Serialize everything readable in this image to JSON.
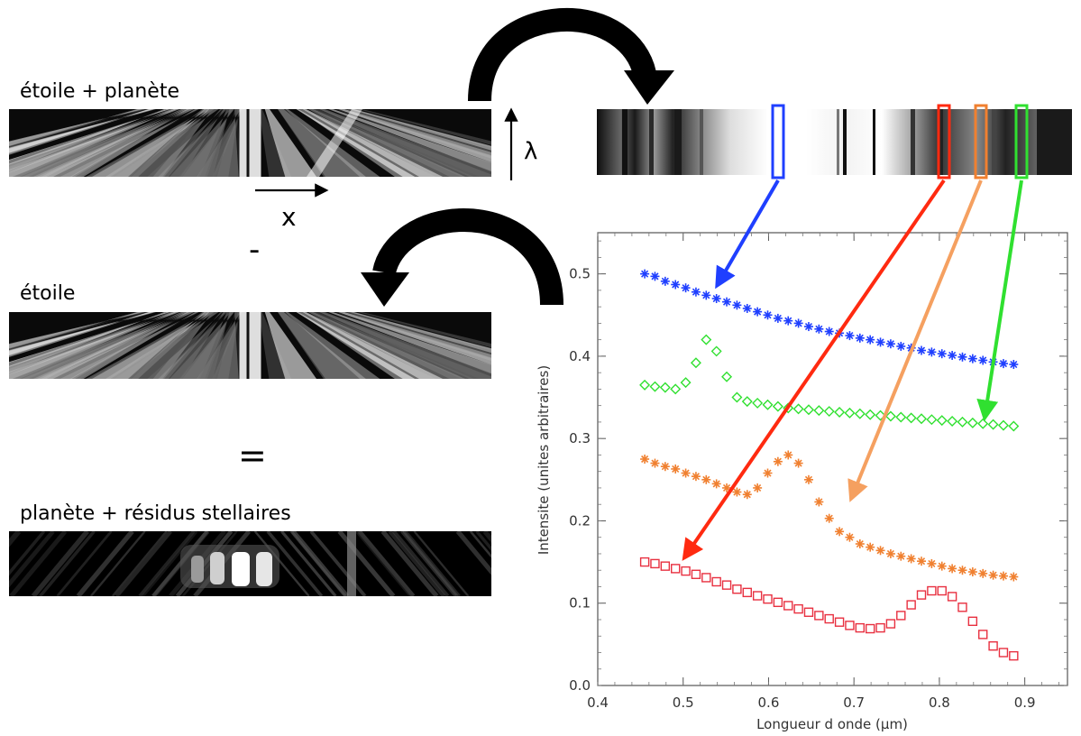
{
  "labels": {
    "star_planet": "étoile + planète",
    "star": "étoile",
    "residual": "planète + résidus stellaires",
    "minus": "-",
    "equals": "=",
    "x_axis_symbol": "x",
    "lambda_symbol": "λ"
  },
  "colors": {
    "blue": "#1f3fff",
    "red": "#ff2a10",
    "orange": "#f5a060",
    "green": "#30e030"
  },
  "chart_data": {
    "type": "scatter",
    "xlabel": "Longueur d onde (μm)",
    "ylabel": "Intensite (unites arbitraires)",
    "xlim": [
      0.4,
      0.95
    ],
    "ylim": [
      0.0,
      0.55
    ],
    "x_ticks": [
      "0.4",
      "0.5",
      "0.6",
      "0.7",
      "0.8",
      "0.9"
    ],
    "y_ticks": [
      "0.0",
      "0.1",
      "0.2",
      "0.3",
      "0.4",
      "0.5"
    ],
    "x": [
      0.455,
      0.467,
      0.479,
      0.491,
      0.503,
      0.515,
      0.527,
      0.539,
      0.551,
      0.563,
      0.575,
      0.587,
      0.599,
      0.611,
      0.623,
      0.635,
      0.647,
      0.659,
      0.671,
      0.683,
      0.695,
      0.707,
      0.719,
      0.731,
      0.743,
      0.755,
      0.767,
      0.779,
      0.791,
      0.803,
      0.815,
      0.827,
      0.839,
      0.851,
      0.863,
      0.875,
      0.887
    ],
    "series": [
      {
        "marker": "asterisk",
        "color": "#1f3fff",
        "values": [
          0.5,
          0.497,
          0.491,
          0.487,
          0.483,
          0.478,
          0.474,
          0.47,
          0.466,
          0.462,
          0.458,
          0.454,
          0.45,
          0.446,
          0.443,
          0.44,
          0.436,
          0.433,
          0.43,
          0.428,
          0.425,
          0.422,
          0.42,
          0.417,
          0.415,
          0.412,
          0.41,
          0.407,
          0.405,
          0.403,
          0.401,
          0.399,
          0.397,
          0.395,
          0.393,
          0.391,
          0.39
        ]
      },
      {
        "marker": "diamond",
        "color": "#30e030",
        "values": [
          0.365,
          0.363,
          0.362,
          0.36,
          0.368,
          0.392,
          0.42,
          0.406,
          0.375,
          0.35,
          0.345,
          0.343,
          0.341,
          0.339,
          0.337,
          0.336,
          0.335,
          0.334,
          0.333,
          0.332,
          0.331,
          0.33,
          0.329,
          0.328,
          0.327,
          0.326,
          0.325,
          0.324,
          0.323,
          0.322,
          0.321,
          0.32,
          0.319,
          0.318,
          0.317,
          0.316,
          0.315
        ]
      },
      {
        "marker": "asterisk",
        "color": "#f08030",
        "values": [
          0.275,
          0.27,
          0.266,
          0.263,
          0.258,
          0.254,
          0.25,
          0.245,
          0.24,
          0.235,
          0.232,
          0.24,
          0.258,
          0.272,
          0.28,
          0.27,
          0.25,
          0.223,
          0.203,
          0.187,
          0.18,
          0.172,
          0.168,
          0.164,
          0.16,
          0.157,
          0.154,
          0.151,
          0.148,
          0.145,
          0.142,
          0.14,
          0.138,
          0.136,
          0.134,
          0.133,
          0.132
        ]
      },
      {
        "marker": "square",
        "color": "#e83040",
        "values": [
          0.15,
          0.148,
          0.145,
          0.142,
          0.139,
          0.135,
          0.131,
          0.126,
          0.122,
          0.117,
          0.113,
          0.109,
          0.105,
          0.101,
          0.097,
          0.093,
          0.089,
          0.085,
          0.081,
          0.077,
          0.073,
          0.07,
          0.069,
          0.07,
          0.075,
          0.085,
          0.098,
          0.11,
          0.115,
          0.115,
          0.108,
          0.095,
          0.078,
          0.062,
          0.048,
          0.04,
          0.036
        ]
      }
    ]
  }
}
